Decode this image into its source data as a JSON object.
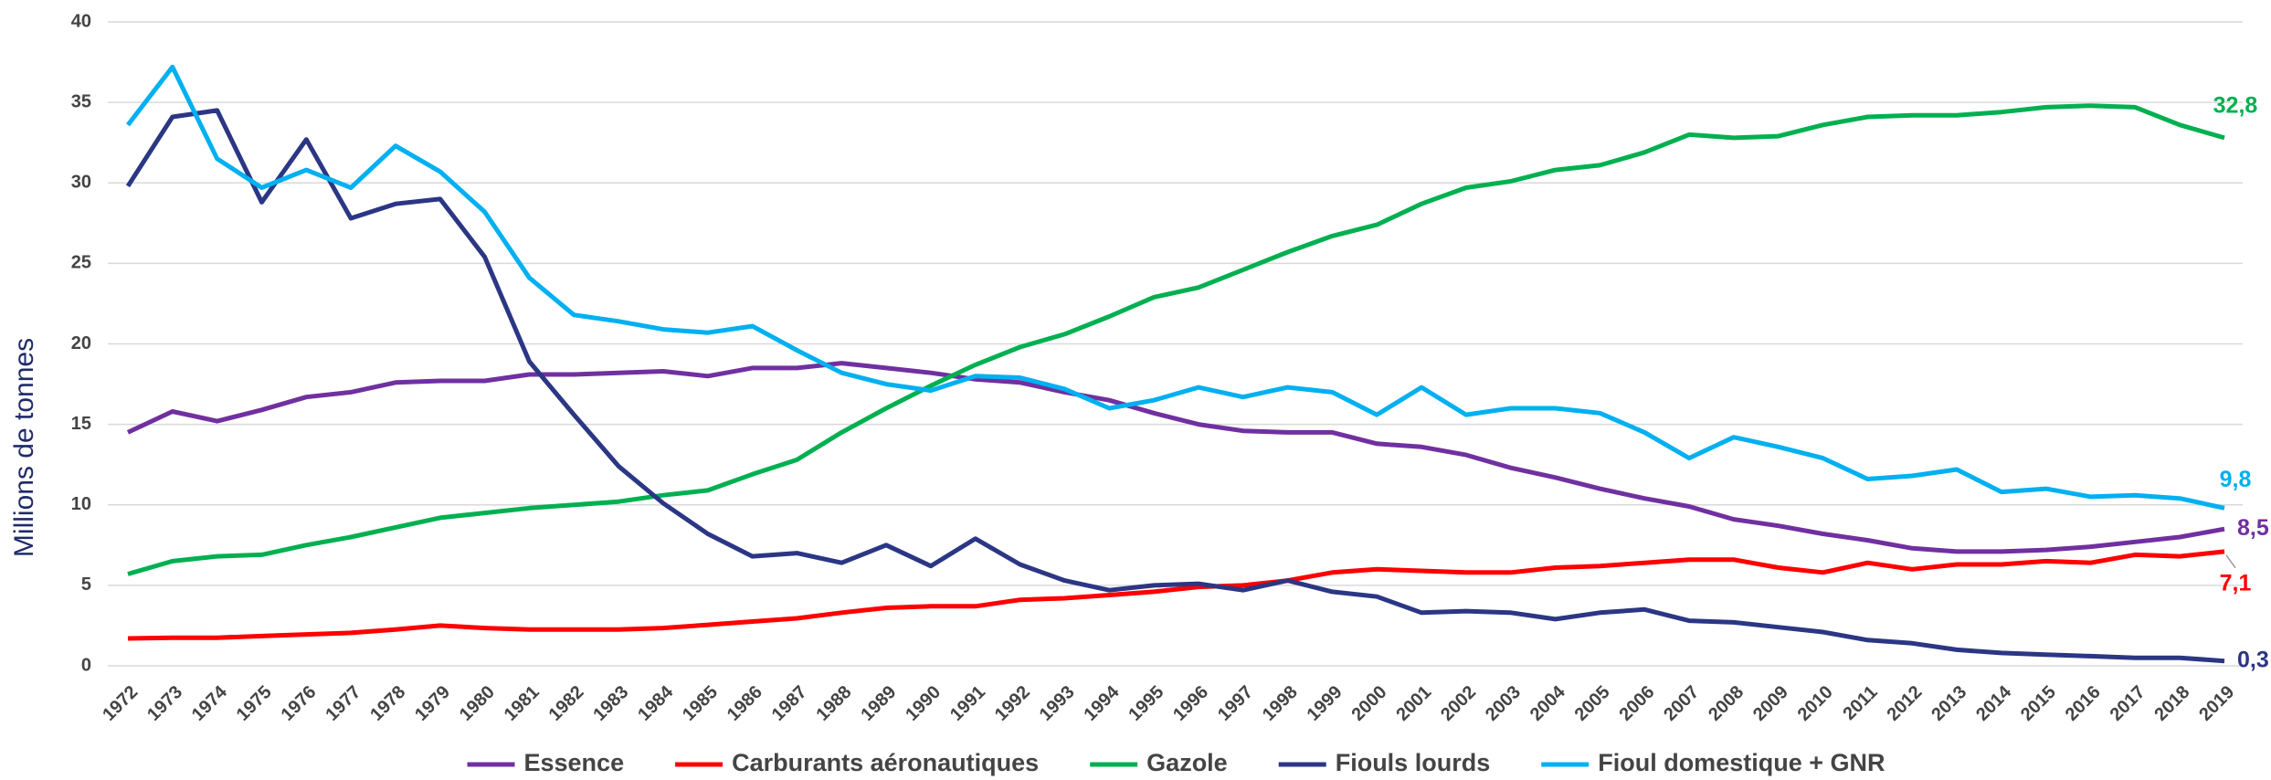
{
  "chart_data": {
    "type": "line",
    "y_label": "Millions de tonnes",
    "categories": [
      "1972",
      "1973",
      "1974",
      "1975",
      "1976",
      "1977",
      "1978",
      "1979",
      "1980",
      "1981",
      "1982",
      "1983",
      "1984",
      "1985",
      "1986",
      "1987",
      "1988",
      "1989",
      "1990",
      "1991",
      "1992",
      "1993",
      "1994",
      "1995",
      "1996",
      "1997",
      "1998",
      "1999",
      "2000",
      "2001",
      "2002",
      "2003",
      "2004",
      "2005",
      "2006",
      "2007",
      "2008",
      "2009",
      "2010",
      "2011",
      "2012",
      "2013",
      "2014",
      "2015",
      "2016",
      "2017",
      "2018",
      "2019"
    ],
    "ylim": [
      0,
      40
    ],
    "yticks": [
      0,
      5,
      10,
      15,
      20,
      25,
      30,
      35,
      40
    ],
    "grid": true,
    "legend": "bottom",
    "series": [
      {
        "name": "Essence",
        "color": "#7030a0",
        "values": [
          14.5,
          15.8,
          15.2,
          15.9,
          16.7,
          17.0,
          17.6,
          17.7,
          17.7,
          18.1,
          18.1,
          18.2,
          18.3,
          18.0,
          18.5,
          18.5,
          18.8,
          18.5,
          18.2,
          17.8,
          17.6,
          17.0,
          16.5,
          15.7,
          15.0,
          14.6,
          14.5,
          14.5,
          13.8,
          13.6,
          13.1,
          12.3,
          11.7,
          11.0,
          10.4,
          9.9,
          9.1,
          8.7,
          8.2,
          7.8,
          7.3,
          7.1,
          7.1,
          7.2,
          7.4,
          7.7,
          8.0,
          8.5
        ],
        "value_labels": [
          null,
          null,
          null,
          null,
          null,
          null,
          null,
          null,
          null,
          null,
          null,
          null,
          null,
          null,
          null,
          null,
          null,
          null,
          null,
          null,
          null,
          null,
          null,
          null,
          null,
          null,
          null,
          null,
          null,
          null,
          null,
          null,
          null,
          null,
          null,
          null,
          null,
          null,
          null,
          null,
          null,
          null,
          null,
          null,
          null,
          null,
          null,
          "8,5"
        ]
      },
      {
        "name": "Carburants aéronautiques",
        "color": "#ff0000",
        "values": [
          1.7,
          1.75,
          1.75,
          1.85,
          1.95,
          2.05,
          2.25,
          2.5,
          2.35,
          2.25,
          2.25,
          2.25,
          2.35,
          2.55,
          2.75,
          2.95,
          3.3,
          3.6,
          3.7,
          3.7,
          4.1,
          4.2,
          4.4,
          4.6,
          4.9,
          5.0,
          5.3,
          5.8,
          6.0,
          5.9,
          5.8,
          5.8,
          6.1,
          6.2,
          6.4,
          6.6,
          6.6,
          6.1,
          5.8,
          6.4,
          6.0,
          6.3,
          6.3,
          6.5,
          6.4,
          6.9,
          6.8,
          7.1
        ],
        "value_labels": [
          null,
          null,
          null,
          null,
          null,
          null,
          null,
          null,
          null,
          null,
          null,
          null,
          null,
          null,
          null,
          null,
          null,
          null,
          null,
          null,
          null,
          null,
          null,
          null,
          null,
          null,
          null,
          null,
          null,
          null,
          null,
          null,
          null,
          null,
          null,
          null,
          null,
          null,
          null,
          null,
          null,
          null,
          null,
          null,
          null,
          null,
          null,
          "7,1"
        ]
      },
      {
        "name": "Gazole",
        "color": "#00b050",
        "values": [
          5.7,
          6.5,
          6.8,
          6.9,
          7.5,
          8.0,
          8.6,
          9.2,
          9.5,
          9.8,
          10.0,
          10.2,
          10.6,
          10.9,
          11.9,
          12.8,
          14.5,
          16.0,
          17.4,
          18.7,
          19.8,
          20.6,
          21.7,
          22.9,
          23.5,
          24.6,
          25.7,
          26.7,
          27.4,
          28.7,
          29.7,
          30.1,
          30.8,
          31.1,
          31.9,
          33.0,
          32.8,
          32.9,
          33.6,
          34.1,
          34.2,
          34.2,
          34.4,
          34.7,
          34.8,
          34.7,
          33.6,
          32.8
        ],
        "value_labels": [
          null,
          null,
          null,
          null,
          null,
          null,
          null,
          null,
          null,
          null,
          null,
          null,
          null,
          null,
          null,
          null,
          null,
          null,
          null,
          null,
          null,
          null,
          null,
          null,
          null,
          null,
          null,
          null,
          null,
          null,
          null,
          null,
          null,
          null,
          null,
          null,
          null,
          null,
          null,
          null,
          null,
          null,
          null,
          null,
          null,
          null,
          null,
          "32,8"
        ]
      },
      {
        "name": "Fiouls lourds",
        "color": "#2b3684",
        "values": [
          29.8,
          34.1,
          34.5,
          28.8,
          32.7,
          27.8,
          28.7,
          29.0,
          25.4,
          18.9,
          15.6,
          12.4,
          10.1,
          8.2,
          6.8,
          7.0,
          6.4,
          7.5,
          6.2,
          7.9,
          6.3,
          5.3,
          4.7,
          5.0,
          5.1,
          4.7,
          5.3,
          4.6,
          4.3,
          3.3,
          3.4,
          3.3,
          2.9,
          3.3,
          3.5,
          2.8,
          2.7,
          2.4,
          2.1,
          1.6,
          1.4,
          1.0,
          0.8,
          0.7,
          0.6,
          0.5,
          0.5,
          0.3
        ],
        "value_labels": [
          null,
          null,
          null,
          null,
          null,
          null,
          null,
          null,
          null,
          null,
          null,
          null,
          null,
          null,
          null,
          null,
          null,
          null,
          null,
          null,
          null,
          null,
          null,
          null,
          null,
          null,
          null,
          null,
          null,
          null,
          null,
          null,
          null,
          null,
          null,
          null,
          null,
          null,
          null,
          null,
          null,
          null,
          null,
          null,
          null,
          null,
          null,
          "0,3"
        ]
      },
      {
        "name": "Fioul domestique + GNR",
        "color": "#00b0f0",
        "values": [
          33.6,
          37.2,
          31.5,
          29.7,
          30.8,
          29.7,
          32.3,
          30.7,
          28.2,
          24.1,
          21.8,
          21.4,
          20.9,
          20.7,
          21.1,
          19.6,
          18.2,
          17.5,
          17.1,
          18.0,
          17.9,
          17.2,
          16.0,
          16.5,
          17.3,
          16.7,
          17.3,
          17.0,
          15.6,
          17.3,
          15.6,
          16.0,
          16.0,
          15.7,
          14.5,
          12.9,
          14.2,
          13.6,
          12.9,
          11.6,
          11.8,
          12.2,
          10.8,
          11.0,
          10.5,
          10.6,
          10.4,
          9.8
        ],
        "value_labels": [
          null,
          null,
          null,
          null,
          null,
          null,
          null,
          null,
          null,
          null,
          null,
          null,
          null,
          null,
          null,
          null,
          null,
          null,
          null,
          null,
          null,
          null,
          null,
          null,
          null,
          null,
          null,
          null,
          null,
          null,
          null,
          null,
          null,
          null,
          null,
          null,
          null,
          null,
          null,
          null,
          null,
          null,
          null,
          null,
          null,
          null,
          null,
          "9,8"
        ]
      }
    ]
  }
}
